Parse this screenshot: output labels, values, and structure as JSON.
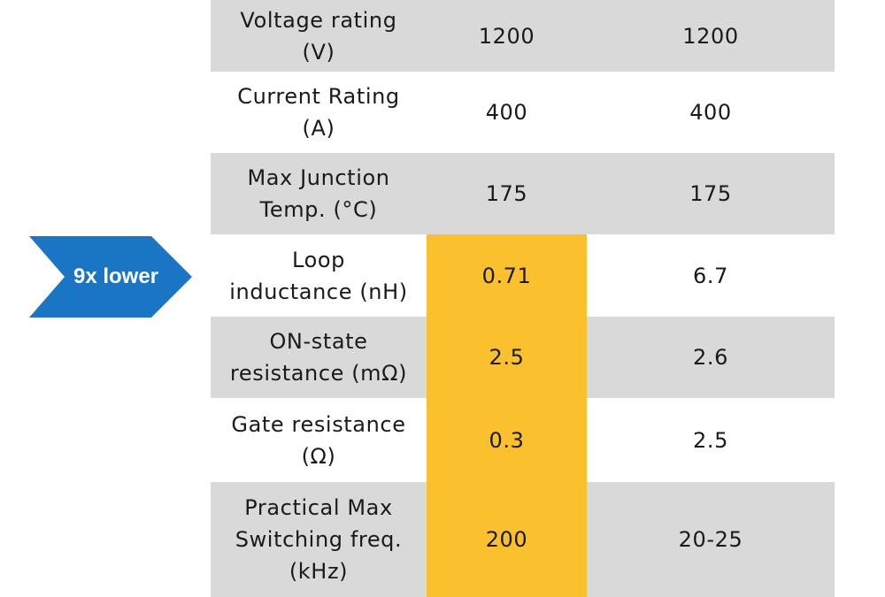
{
  "callout": {
    "label": "9x lower",
    "color": "#1a75c4"
  },
  "colors": {
    "shaded_row": "#d9d9d9",
    "highlight": "#fbc02d"
  },
  "chart_data": {
    "type": "table",
    "highlighted_column": 1,
    "highlighted_rows_from": 3,
    "rows": [
      {
        "param": [
          "Voltage rating",
          "(V)"
        ],
        "a": "1200",
        "b": "1200",
        "shaded": true
      },
      {
        "param": [
          "Current Rating",
          "(A)"
        ],
        "a": "400",
        "b": "400",
        "shaded": false
      },
      {
        "param": [
          "Max Junction",
          "Temp. (°C)"
        ],
        "a": "175",
        "b": "175",
        "shaded": true
      },
      {
        "param": [
          "Loop",
          "inductance (nH)"
        ],
        "a": "0.71",
        "b": "6.7",
        "shaded": false
      },
      {
        "param": [
          "ON-state",
          "resistance (mΩ)"
        ],
        "a": "2.5",
        "b": "2.6",
        "shaded": true
      },
      {
        "param": [
          "Gate resistance",
          "(Ω)"
        ],
        "a": "0.3",
        "b": "2.5",
        "shaded": false
      },
      {
        "param": [
          "Practical Max",
          "Switching freq.",
          "(kHz)"
        ],
        "a": "200",
        "b": "20-25",
        "shaded": true
      }
    ]
  }
}
